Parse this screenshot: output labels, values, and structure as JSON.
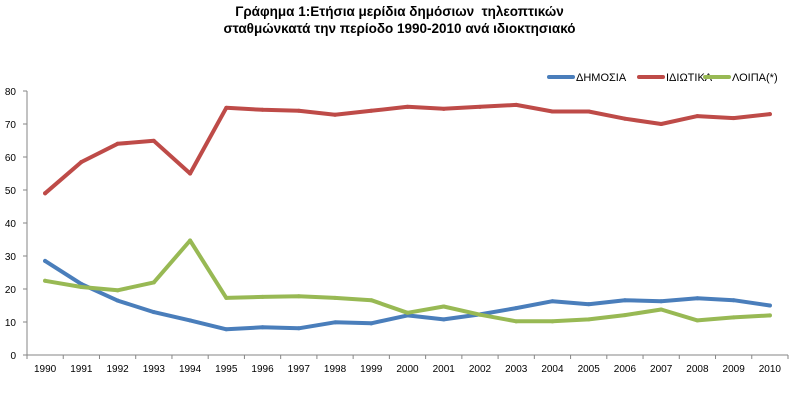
{
  "chart_data": {
    "type": "line",
    "title_line1": "Γράφημα 1:Ετήσια μερίδια δημόσιων  τηλεοπτικών",
    "title_line2": "σταθμώνκατά την περίοδο 1990-2010 ανά ιδιοκτησιακό",
    "xlabel": "",
    "ylabel": "",
    "ylim": [
      0,
      80
    ],
    "yticks": [
      0,
      10,
      20,
      30,
      40,
      50,
      60,
      70,
      80
    ],
    "grid": false,
    "legend_position": "top-right",
    "x": [
      "1990",
      "1991",
      "1992",
      "1993",
      "1994",
      "1995",
      "1996",
      "1997",
      "1998",
      "1999",
      "2000",
      "2001",
      "2002",
      "2003",
      "2004",
      "2005",
      "2006",
      "2007",
      "2008",
      "2009",
      "2010"
    ],
    "series": [
      {
        "name": "ΔΗΜΟΣΙΑ",
        "color": "#4a7ebb",
        "values": [
          28.5,
          21.5,
          16.5,
          13.0,
          10.5,
          7.8,
          8.4,
          8.1,
          9.9,
          9.6,
          12.0,
          10.8,
          12.3,
          14.2,
          16.3,
          15.4,
          16.6,
          16.3,
          17.2,
          16.6,
          15.0
        ]
      },
      {
        "name": "ΙΔΙΩΤΙΚΑ",
        "color": "#be4b48",
        "values": [
          49.0,
          58.5,
          64.0,
          64.9,
          55.0,
          74.9,
          74.3,
          74.0,
          72.8,
          74.0,
          75.2,
          74.6,
          75.2,
          75.8,
          73.8,
          73.8,
          71.6,
          70.0,
          72.4,
          71.8,
          73.0
        ]
      },
      {
        "name": "ΛΟΙΠΑ(*)",
        "color": "#98b954",
        "values": [
          22.5,
          20.6,
          19.6,
          22.0,
          34.7,
          17.3,
          17.6,
          17.8,
          17.3,
          16.6,
          12.8,
          14.7,
          12.2,
          10.2,
          10.2,
          10.8,
          12.1,
          13.8,
          10.5,
          11.4,
          12.0
        ]
      }
    ]
  }
}
